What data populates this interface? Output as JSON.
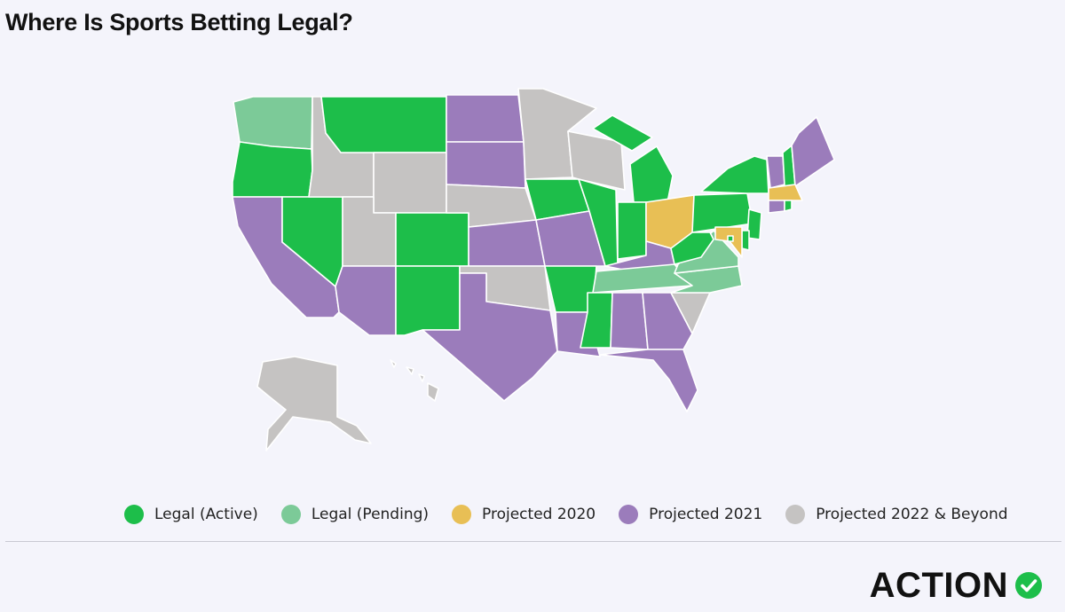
{
  "title": "Where Is Sports Betting Legal?",
  "categories": {
    "active": {
      "label": "Legal (Active)",
      "color": "#1dbe4a"
    },
    "pending": {
      "label": "Legal (Pending)",
      "color": "#7cca98"
    },
    "p2020": {
      "label": "Projected 2020",
      "color": "#e8bf55"
    },
    "p2021": {
      "label": "Projected 2021",
      "color": "#9b7cbb"
    },
    "p2022": {
      "label": "Projected 2022 & Beyond",
      "color": "#c5c3c2"
    }
  },
  "legend": [
    "active",
    "pending",
    "p2020",
    "p2021",
    "p2022"
  ],
  "states": {
    "WA": "pending",
    "OR": "active",
    "CA": "p2021",
    "NV": "active",
    "ID": "p2022",
    "MT": "active",
    "WY": "p2022",
    "UT": "p2022",
    "AZ": "p2021",
    "CO": "active",
    "NM": "active",
    "ND": "p2021",
    "SD": "p2021",
    "NE": "p2022",
    "KS": "p2021",
    "OK": "p2022",
    "TX": "p2021",
    "MN": "p2022",
    "IA": "active",
    "MO": "p2021",
    "AR": "active",
    "LA": "p2021",
    "WI": "p2022",
    "IL": "active",
    "MI": "active",
    "IN": "active",
    "OH": "p2020",
    "KY": "p2021",
    "TN": "pending",
    "MS": "active",
    "AL": "p2021",
    "GA": "p2021",
    "FL": "p2021",
    "SC": "p2022",
    "NC": "pending",
    "VA": "pending",
    "WV": "active",
    "PA": "active",
    "NY": "active",
    "ME": "p2021",
    "VT": "p2021",
    "NH": "active",
    "MA": "p2020",
    "RI": "active",
    "CT": "p2021",
    "NJ": "active",
    "DE": "active",
    "MD": "p2020",
    "DC": "active",
    "AK": "p2022",
    "HI": "p2022"
  },
  "brand": {
    "name": "ACTION",
    "icon": "check-circle-icon",
    "icon_color": "#1dbe4a"
  }
}
